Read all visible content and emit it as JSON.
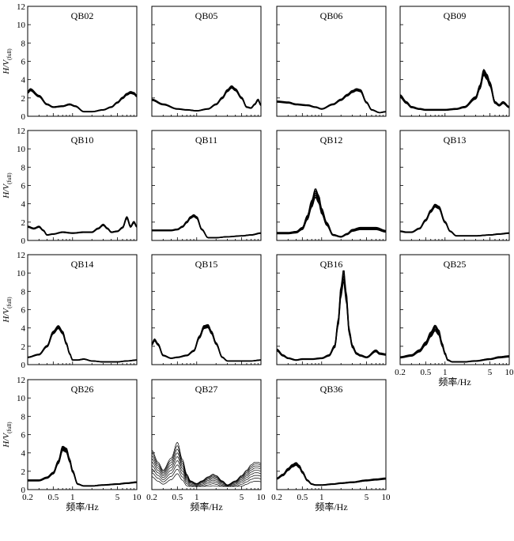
{
  "chart_data": {
    "type": "line",
    "x_scale": "log",
    "xlim": [
      0.2,
      10
    ],
    "ylim": [
      0,
      12
    ],
    "x_ticks": [
      0.2,
      0.5,
      1,
      5,
      10
    ],
    "x_tick_labels": [
      "0.2",
      "0.5",
      "1",
      "5",
      "10"
    ],
    "y_ticks": [
      0,
      2,
      4,
      6,
      8,
      10,
      12
    ],
    "y_tick_labels": [
      "0",
      "2",
      "4",
      "6",
      "8",
      "10",
      "12"
    ],
    "ylabel": "H/V(full)",
    "ylabel_main": "H/V",
    "ylabel_sub": "(full)",
    "xlabel": "频率/Hz",
    "panels": [
      {
        "title": "QB02",
        "spread": 0.15,
        "n_curves": 5,
        "x": [
          0.2,
          0.22,
          0.3,
          0.4,
          0.5,
          0.7,
          0.9,
          1.1,
          1.5,
          2,
          3,
          4,
          5,
          6,
          7,
          8,
          9,
          10
        ],
        "y": [
          2.6,
          2.9,
          2.2,
          1.3,
          1.0,
          1.1,
          1.3,
          1.1,
          0.5,
          0.5,
          0.7,
          1.0,
          1.5,
          2.0,
          2.4,
          2.6,
          2.5,
          2.2
        ]
      },
      {
        "title": "QB05",
        "spread": 0.15,
        "n_curves": 5,
        "x": [
          0.2,
          0.3,
          0.5,
          0.7,
          1,
          1.5,
          2,
          2.5,
          3,
          3.5,
          4,
          5,
          6,
          7,
          8,
          9,
          10
        ],
        "y": [
          1.8,
          1.3,
          0.8,
          0.7,
          0.6,
          0.8,
          1.3,
          2.0,
          2.8,
          3.2,
          2.9,
          2.0,
          1.0,
          0.9,
          1.3,
          1.8,
          1.2
        ]
      },
      {
        "title": "QB06",
        "spread": 0.15,
        "n_curves": 5,
        "x": [
          0.2,
          0.3,
          0.4,
          0.6,
          0.8,
          1,
          1.5,
          2,
          2.5,
          3,
          3.5,
          4,
          5,
          6,
          8,
          10
        ],
        "y": [
          1.6,
          1.5,
          1.3,
          1.2,
          1.0,
          0.8,
          1.3,
          1.8,
          2.3,
          2.7,
          2.9,
          2.8,
          1.5,
          0.7,
          0.4,
          0.5
        ]
      },
      {
        "title": "QB09",
        "spread": 0.25,
        "n_curves": 5,
        "x": [
          0.2,
          0.25,
          0.3,
          0.4,
          0.5,
          0.7,
          1,
          1.5,
          2,
          3,
          3.5,
          4,
          4.5,
          5,
          6,
          7,
          8,
          10
        ],
        "y": [
          2.2,
          1.5,
          1.0,
          0.8,
          0.7,
          0.7,
          0.7,
          0.8,
          1.0,
          2.0,
          3.2,
          4.8,
          4.3,
          3.5,
          1.5,
          1.2,
          1.5,
          1.0
        ]
      },
      {
        "title": "QB10",
        "spread": 0.15,
        "n_curves": 5,
        "x": [
          0.2,
          0.25,
          0.3,
          0.35,
          0.4,
          0.5,
          0.7,
          1,
          1.5,
          2,
          2.5,
          3,
          3.5,
          4,
          5,
          6,
          7,
          8,
          9,
          10
        ],
        "y": [
          1.5,
          1.3,
          1.5,
          1.1,
          0.6,
          0.7,
          0.9,
          0.8,
          0.9,
          0.9,
          1.3,
          1.7,
          1.3,
          0.9,
          1.0,
          1.4,
          2.5,
          1.5,
          2.0,
          1.5
        ]
      },
      {
        "title": "QB11",
        "spread": 0.15,
        "n_curves": 5,
        "x": [
          0.2,
          0.3,
          0.4,
          0.5,
          0.6,
          0.7,
          0.8,
          0.9,
          1,
          1.2,
          1.5,
          2,
          3,
          5,
          7,
          10
        ],
        "y": [
          1.1,
          1.1,
          1.1,
          1.2,
          1.5,
          2.0,
          2.5,
          2.7,
          2.5,
          1.2,
          0.3,
          0.3,
          0.4,
          0.5,
          0.6,
          0.8
        ]
      },
      {
        "title": "QB12",
        "spread": 0.35,
        "n_curves": 5,
        "x": [
          0.2,
          0.3,
          0.4,
          0.5,
          0.6,
          0.7,
          0.8,
          0.9,
          1,
          1.2,
          1.5,
          2,
          2.5,
          3,
          4,
          5,
          7,
          10
        ],
        "y": [
          0.8,
          0.8,
          0.9,
          1.3,
          2.5,
          4.0,
          5.2,
          4.5,
          3.2,
          1.8,
          0.6,
          0.4,
          0.7,
          1.1,
          1.3,
          1.3,
          1.3,
          1.0
        ]
      },
      {
        "title": "QB13",
        "spread": 0.15,
        "n_curves": 5,
        "x": [
          0.2,
          0.25,
          0.3,
          0.4,
          0.5,
          0.6,
          0.7,
          0.8,
          1,
          1.2,
          1.5,
          2,
          3,
          5,
          7,
          10
        ],
        "y": [
          1.0,
          0.9,
          0.9,
          1.3,
          2.2,
          3.2,
          3.8,
          3.6,
          2.0,
          1.0,
          0.5,
          0.5,
          0.5,
          0.6,
          0.7,
          0.8
        ]
      },
      {
        "title": "QB14",
        "spread": 0.15,
        "n_curves": 5,
        "x": [
          0.2,
          0.3,
          0.4,
          0.5,
          0.6,
          0.7,
          0.8,
          0.9,
          1,
          1.2,
          1.5,
          2,
          3,
          5,
          7,
          10
        ],
        "y": [
          0.8,
          1.1,
          2.0,
          3.5,
          4.1,
          3.5,
          2.3,
          1.2,
          0.5,
          0.5,
          0.6,
          0.4,
          0.3,
          0.3,
          0.4,
          0.5
        ]
      },
      {
        "title": "QB15",
        "spread": 0.15,
        "n_curves": 5,
        "x": [
          0.2,
          0.22,
          0.25,
          0.3,
          0.4,
          0.5,
          0.7,
          0.9,
          1.1,
          1.3,
          1.5,
          1.7,
          2,
          2.5,
          3,
          4,
          5,
          7,
          10
        ],
        "y": [
          2.2,
          2.7,
          2.2,
          1.0,
          0.7,
          0.8,
          1.0,
          1.5,
          3.0,
          4.1,
          4.2,
          3.5,
          2.3,
          0.8,
          0.4,
          0.4,
          0.4,
          0.4,
          0.5
        ]
      },
      {
        "title": "QB16",
        "spread": 0.25,
        "n_curves": 5,
        "x": [
          0.2,
          0.25,
          0.3,
          0.4,
          0.5,
          0.7,
          1,
          1.3,
          1.6,
          1.8,
          2,
          2.2,
          2.4,
          2.7,
          3,
          3.5,
          4,
          5,
          7,
          8,
          10
        ],
        "y": [
          1.6,
          1.0,
          0.7,
          0.5,
          0.6,
          0.6,
          0.7,
          1.0,
          2.0,
          4.5,
          8.0,
          9.8,
          7.5,
          3.5,
          2.0,
          1.2,
          1.0,
          0.8,
          1.5,
          1.2,
          1.1
        ]
      },
      {
        "title": "QB25",
        "spread": 0.3,
        "n_curves": 5,
        "x": [
          0.2,
          0.3,
          0.4,
          0.5,
          0.6,
          0.7,
          0.8,
          0.9,
          1,
          1.1,
          1.3,
          1.5,
          2,
          3,
          5,
          7,
          10
        ],
        "y": [
          0.8,
          1.0,
          1.5,
          2.3,
          3.3,
          4.0,
          3.5,
          2.2,
          1.2,
          0.5,
          0.3,
          0.3,
          0.3,
          0.4,
          0.6,
          0.8,
          0.9
        ]
      },
      {
        "title": "QB26",
        "spread": 0.2,
        "n_curves": 5,
        "x": [
          0.2,
          0.3,
          0.4,
          0.5,
          0.6,
          0.7,
          0.8,
          0.9,
          1,
          1.2,
          1.5,
          2,
          3,
          5,
          7,
          10
        ],
        "y": [
          1.0,
          1.0,
          1.3,
          1.8,
          3.0,
          4.5,
          4.3,
          3.2,
          2.0,
          0.6,
          0.4,
          0.4,
          0.5,
          0.6,
          0.7,
          0.8
        ]
      },
      {
        "title": "QB27",
        "spread": 1.6,
        "n_curves": 9,
        "x": [
          0.2,
          0.25,
          0.3,
          0.4,
          0.5,
          0.6,
          0.7,
          0.8,
          1,
          1.2,
          1.5,
          1.8,
          2,
          2.5,
          3,
          4,
          5,
          6,
          7,
          8,
          9,
          10
        ],
        "y": [
          3.2,
          2.3,
          1.7,
          2.6,
          3.8,
          2.5,
          1.4,
          0.9,
          0.7,
          0.9,
          1.2,
          1.4,
          1.3,
          0.9,
          0.6,
          0.9,
          1.3,
          1.7,
          2.1,
          2.3,
          2.3,
          2.2
        ]
      },
      {
        "title": "QB36",
        "spread": 0.2,
        "n_curves": 5,
        "x": [
          0.2,
          0.25,
          0.3,
          0.35,
          0.4,
          0.45,
          0.5,
          0.6,
          0.7,
          0.8,
          1,
          1.5,
          2,
          3,
          5,
          7,
          10
        ],
        "y": [
          1.2,
          1.6,
          2.2,
          2.6,
          2.8,
          2.5,
          1.9,
          1.0,
          0.6,
          0.5,
          0.5,
          0.6,
          0.7,
          0.8,
          1.0,
          1.1,
          1.2
        ]
      }
    ],
    "x_axis_shown_on": [
      "QB25",
      "QB26",
      "QB27",
      "QB36"
    ],
    "y_axis_shown_on": [
      "QB02",
      "QB10",
      "QB14",
      "QB26"
    ]
  }
}
